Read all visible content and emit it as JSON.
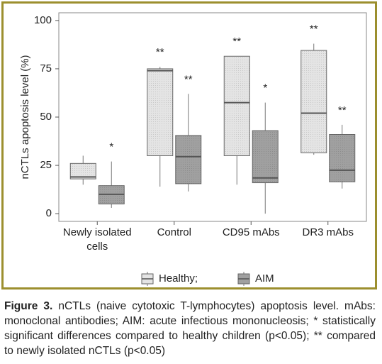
{
  "chart_data": {
    "type": "box",
    "y_label": "nCTLs apoptosis level (%)",
    "categories": [
      "Newly isolated cells",
      "Control",
      "CD95 mAbs",
      "DR3 mAbs"
    ],
    "ylim": [
      -4,
      104
    ],
    "yticks": [
      0,
      25,
      50,
      75,
      100
    ],
    "grid": false,
    "series": [
      {
        "name": "Healthy;",
        "color": "#e4e4e4",
        "values": [
          {
            "min": 15,
            "q1": 18,
            "median": 19,
            "q3": 26,
            "max": 30
          },
          {
            "min": 14,
            "q1": 30,
            "median": 74,
            "q3": 75,
            "max": 76
          },
          {
            "min": 15,
            "q1": 30,
            "median": 57.5,
            "q3": 81.5,
            "max": 81.5
          },
          {
            "min": 30.5,
            "q1": 31.5,
            "median": 52,
            "q3": 84.5,
            "max": 88
          }
        ],
        "labels": [
          null,
          "**",
          "**",
          "**"
        ]
      },
      {
        "name": "AIM",
        "color": "#a0a0a0",
        "values": [
          {
            "min": 3,
            "q1": 5,
            "median": 10,
            "q3": 14.5,
            "max": 27
          },
          {
            "min": 11.5,
            "q1": 15.5,
            "median": 29.5,
            "q3": 40.5,
            "max": 62
          },
          {
            "min": 0,
            "q1": 16,
            "median": 18.5,
            "q3": 43,
            "max": 57.5
          },
          {
            "min": 13,
            "q1": 16.5,
            "median": 22.5,
            "q3": 41,
            "max": 46
          }
        ],
        "labels": [
          "*",
          "**",
          "*",
          "**"
        ]
      }
    ]
  },
  "caption": {
    "label": "Figure 3.",
    "text": "nCTLs (naive cytotoxic T-lymphocytes) apoptosis level. mAbs: monoclonal antibodies; AIM: acute infectious mononucleosis; * statistically significant differences compared to healthy children (p<0.05); ** compared to newly isolated nCTLs (p<0.05)"
  }
}
